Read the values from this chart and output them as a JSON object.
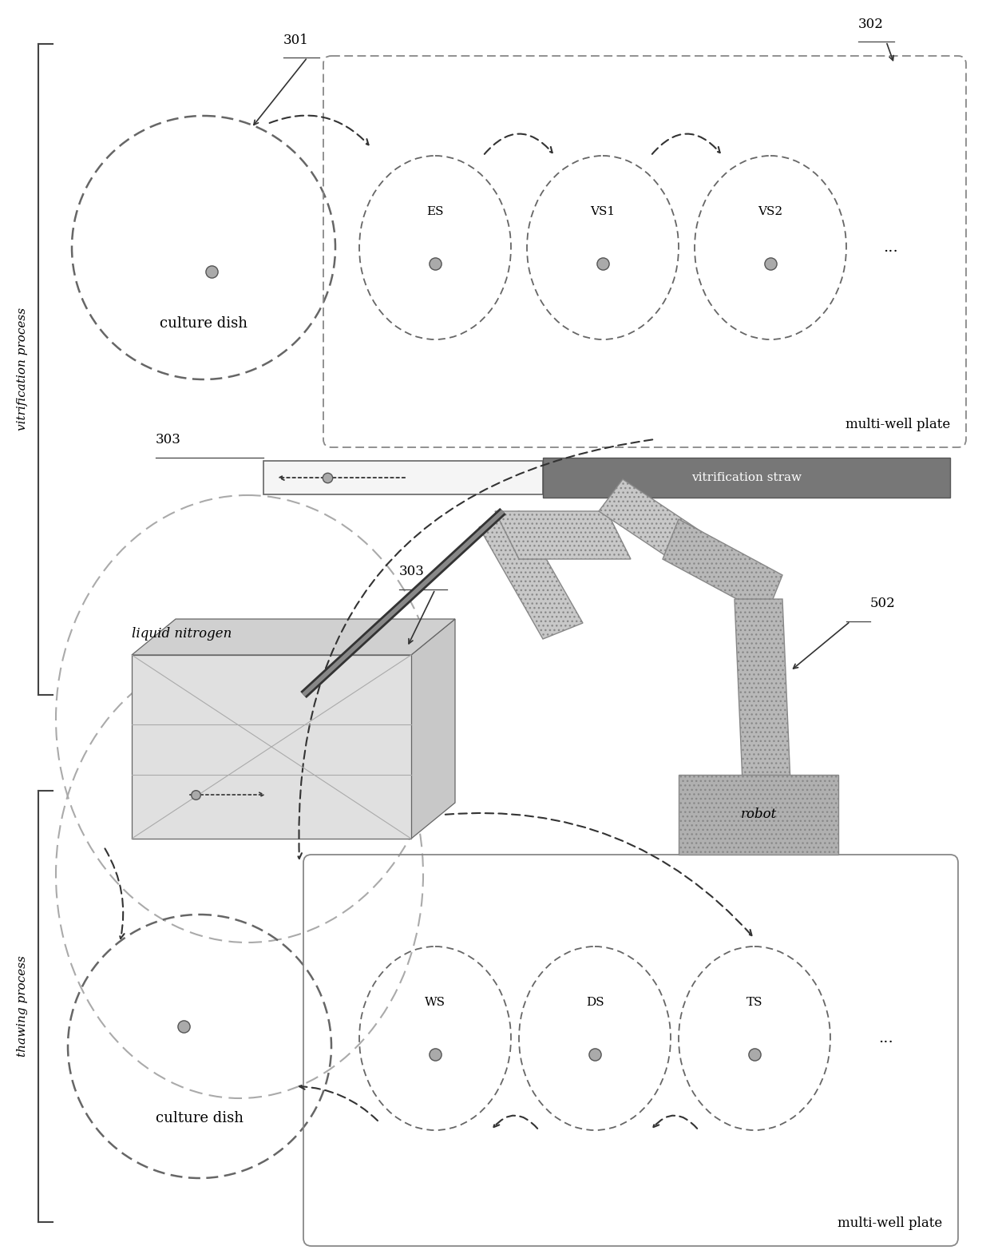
{
  "bg_color": "#ffffff",
  "vitrification_label": "vitrification process",
  "thawing_label": "thawing process",
  "culture_dish_label": "culture dish",
  "multi_well_plate_label": "multi-well plate",
  "vitrification_straw_label": "vitrification straw",
  "liquid_nitrogen_label": "liquid nitrogen",
  "robot_label": "robot",
  "ref_301": "301",
  "ref_302": "302",
  "ref_303_top": "303",
  "ref_303_mid": "303",
  "ref_502": "502",
  "wells_vit": [
    "ES",
    "VS1",
    "VS2"
  ],
  "wells_thaw": [
    "WS",
    "DS",
    "TS"
  ],
  "dots_label": "...",
  "line_color": "#444444",
  "dark_gray": "#888888",
  "mid_gray": "#aaaaaa",
  "light_gray": "#d8d8d8",
  "robot_fill": "#b0b0b0",
  "straw_dark_fill": "#777777"
}
